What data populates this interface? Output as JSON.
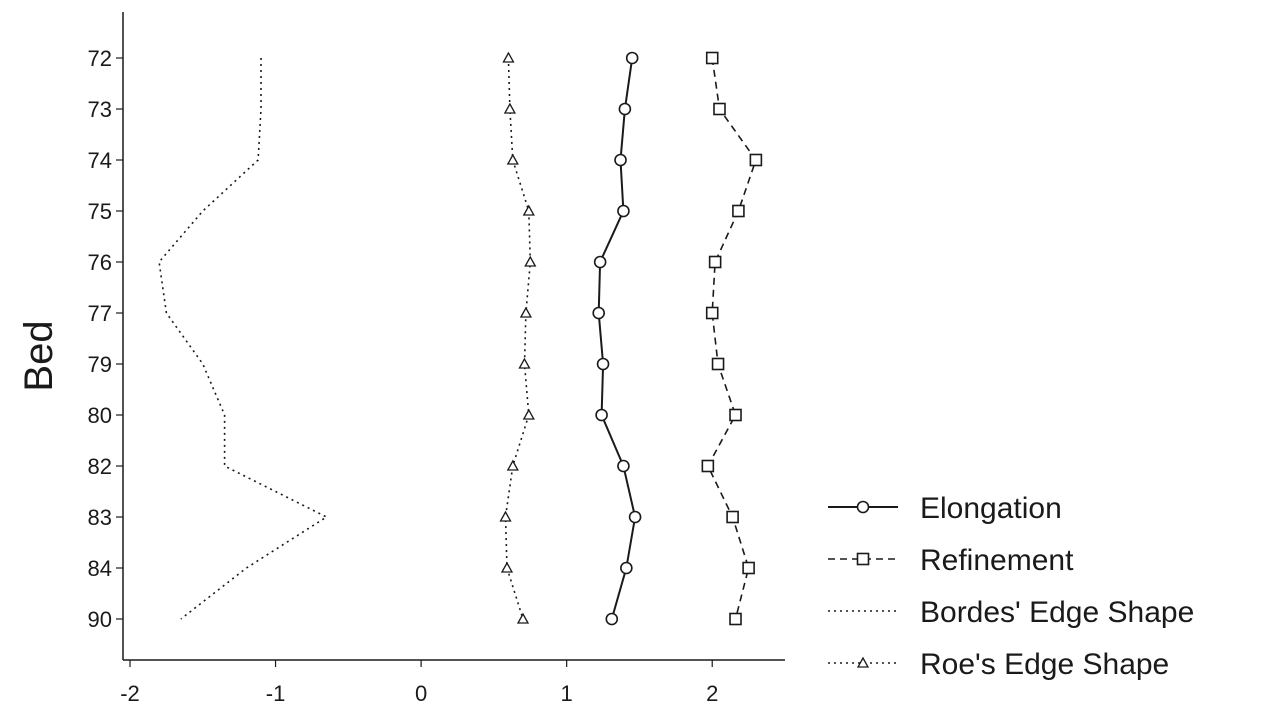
{
  "chart_data": {
    "type": "line",
    "orientation": "horizontal-values",
    "title": "",
    "xlabel": "",
    "ylabel": "Bed",
    "xlim": [
      -2,
      2.5
    ],
    "x_ticks": [
      "-2",
      "-1",
      "0",
      "1",
      "2"
    ],
    "categories": [
      "72",
      "73",
      "74",
      "75",
      "76",
      "77",
      "79",
      "80",
      "82",
      "83",
      "84",
      "90"
    ],
    "grid": false,
    "legend_position": "bottom-right",
    "series": [
      {
        "name": "Elongation",
        "values": [
          1.45,
          1.4,
          1.37,
          1.39,
          1.23,
          1.22,
          1.25,
          1.24,
          1.39,
          1.47,
          1.41,
          1.31
        ],
        "line_style": "solid",
        "marker": "circle"
      },
      {
        "name": "Refinement",
        "values": [
          2.0,
          2.05,
          2.3,
          2.18,
          2.02,
          2.0,
          2.04,
          2.16,
          1.97,
          2.14,
          2.25,
          2.16
        ],
        "line_style": "dashed",
        "marker": "square"
      },
      {
        "name": "Bordes' Edge Shape",
        "values": [
          -1.1,
          -1.1,
          -1.12,
          -1.5,
          -1.8,
          -1.75,
          -1.5,
          -1.35,
          -1.35,
          -0.65,
          -1.2,
          -1.65
        ],
        "line_style": "dotted",
        "marker": "none"
      },
      {
        "name": "Roe's Edge Shape",
        "values": [
          0.6,
          0.61,
          0.63,
          0.74,
          0.75,
          0.72,
          0.71,
          0.74,
          0.63,
          0.58,
          0.59,
          0.7
        ],
        "line_style": "dotted",
        "marker": "triangle"
      }
    ],
    "colors": {
      "line": "#1a1a1a",
      "background": "#ffffff"
    }
  }
}
